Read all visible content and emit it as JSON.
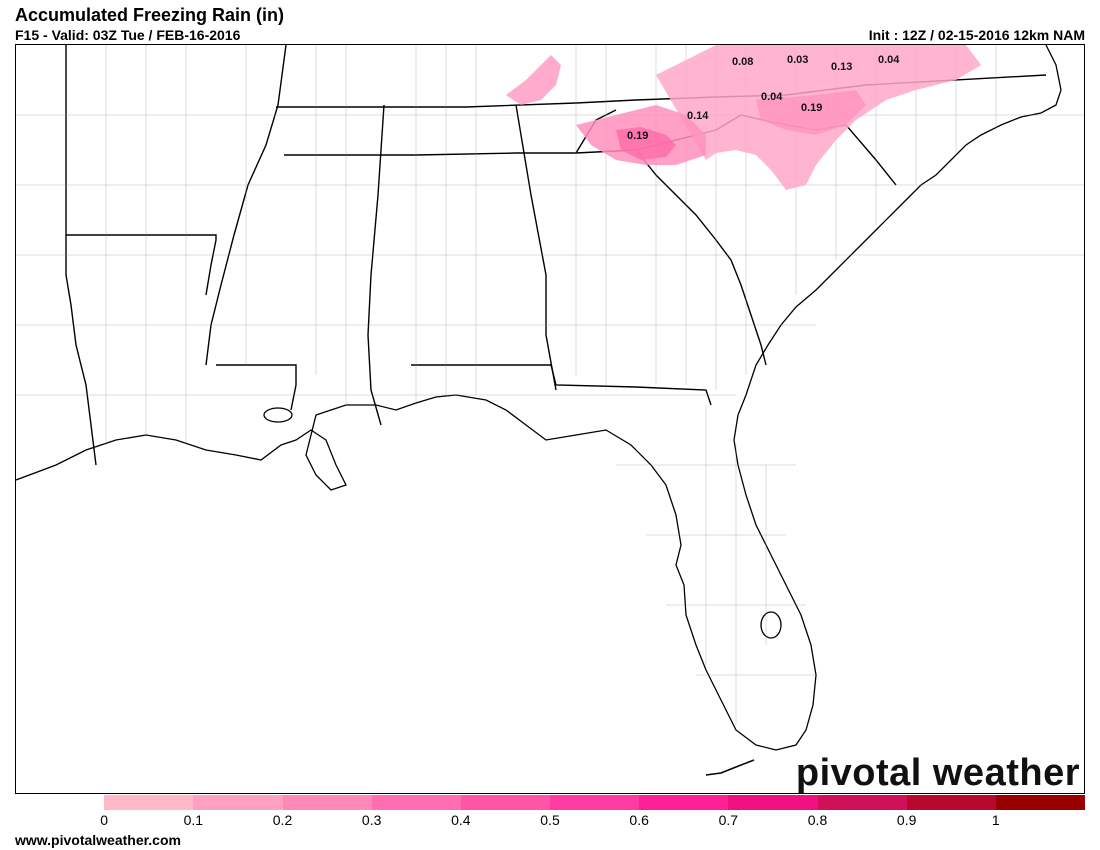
{
  "header": {
    "title": "Accumulated Freezing Rain (in)",
    "valid": "F15 - Valid: 03Z Tue / FEB-16-2016",
    "init": "Init : 12Z / 02-15-2016 12km NAM"
  },
  "map": {
    "region": "Southeastern United States",
    "labels": [
      {
        "id": "label-0-08",
        "text": "0.08"
      },
      {
        "id": "label-0-03",
        "text": "0.03"
      },
      {
        "id": "label-0-13",
        "text": "0.13"
      },
      {
        "id": "label-0-04-ne",
        "text": "0.04"
      },
      {
        "id": "label-0-04-mid",
        "text": "0.04"
      },
      {
        "id": "label-0-19-east",
        "text": "0.19"
      },
      {
        "id": "label-0-14",
        "text": "0.14"
      },
      {
        "id": "label-0-19-west",
        "text": "0.19"
      }
    ]
  },
  "brand": {
    "text": "pivotal weather"
  },
  "colorbar": {
    "colors": [
      "#ffffff",
      "#ffb8c8",
      "#ffa0c0",
      "#ff88b8",
      "#ff6eb0",
      "#ff54a8",
      "#ff3aa0",
      "#ff2098",
      "#f01080",
      "#d01058",
      "#b80830",
      "#980000"
    ],
    "ticks": [
      "0",
      "0.1",
      "0.2",
      "0.3",
      "0.4",
      "0.5",
      "0.6",
      "0.7",
      "0.8",
      "0.9",
      "1"
    ]
  },
  "footer": {
    "url": "www.pivotalweather.com"
  }
}
